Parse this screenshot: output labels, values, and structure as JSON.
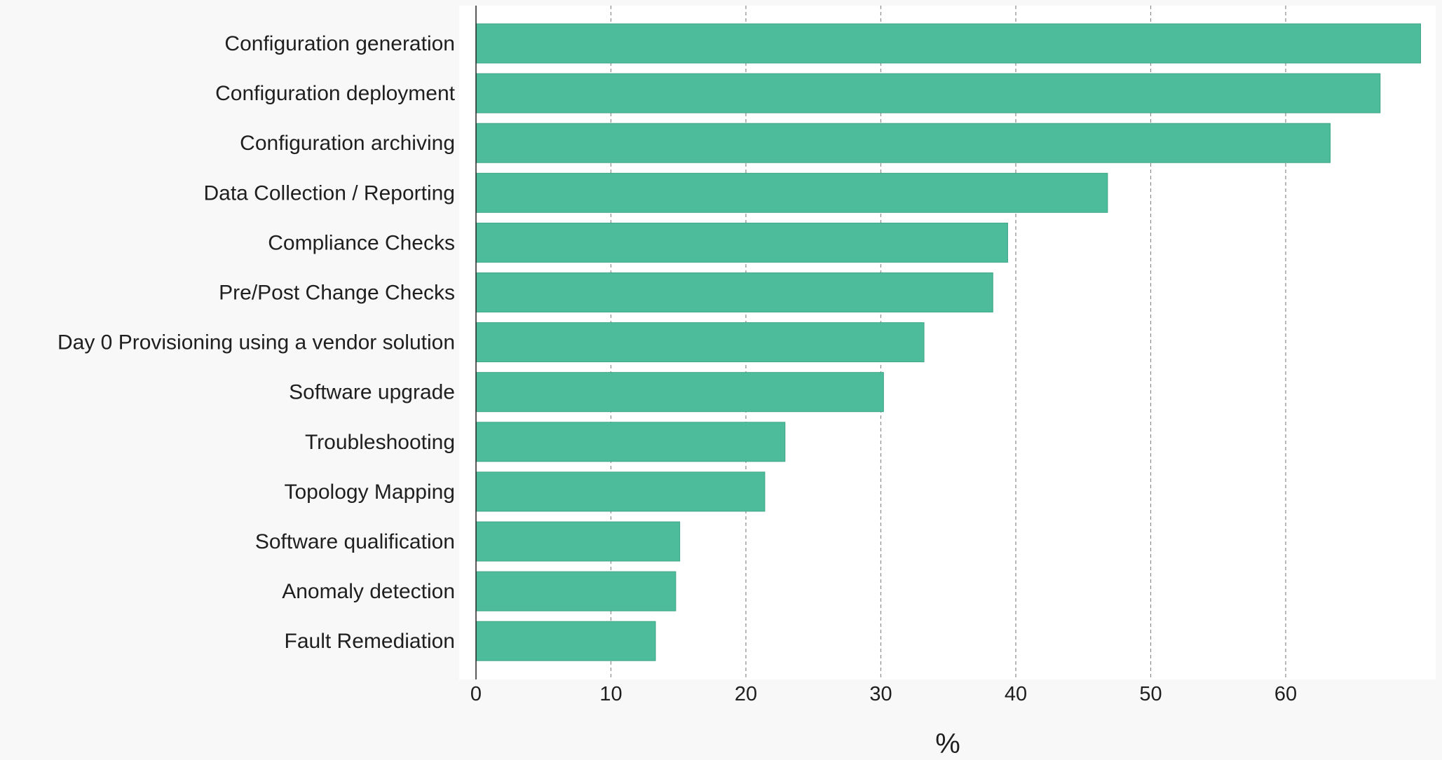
{
  "chart_data": {
    "type": "bar",
    "orientation": "horizontal",
    "title": "",
    "xlabel": "%",
    "ylabel": "",
    "categories": [
      "Configuration generation",
      "Configuration deployment",
      "Configuration archiving",
      "Data Collection / Reporting",
      "Compliance Checks",
      "Pre/Post Change Checks",
      "Day 0 Provisioning using a vendor solution",
      "Software upgrade",
      "Troubleshooting",
      "Topology Mapping",
      "Software qualification",
      "Anomaly detection",
      "Fault Remediation"
    ],
    "values": [
      70.0,
      67.0,
      63.3,
      46.8,
      39.4,
      38.3,
      33.2,
      30.2,
      22.9,
      21.4,
      15.1,
      14.8,
      13.3
    ],
    "xlim": [
      0,
      71.5
    ],
    "xticks": [
      0,
      10,
      20,
      30,
      40,
      50,
      60
    ],
    "grid": true,
    "legend": "none",
    "colors": {
      "bar": "#4cbc9b",
      "bar_edge": "#3fa586",
      "grid": "#8a8a8a",
      "axis": "#222222",
      "plot_background": "#ffffff",
      "page_background": "#f8f8f8"
    }
  }
}
